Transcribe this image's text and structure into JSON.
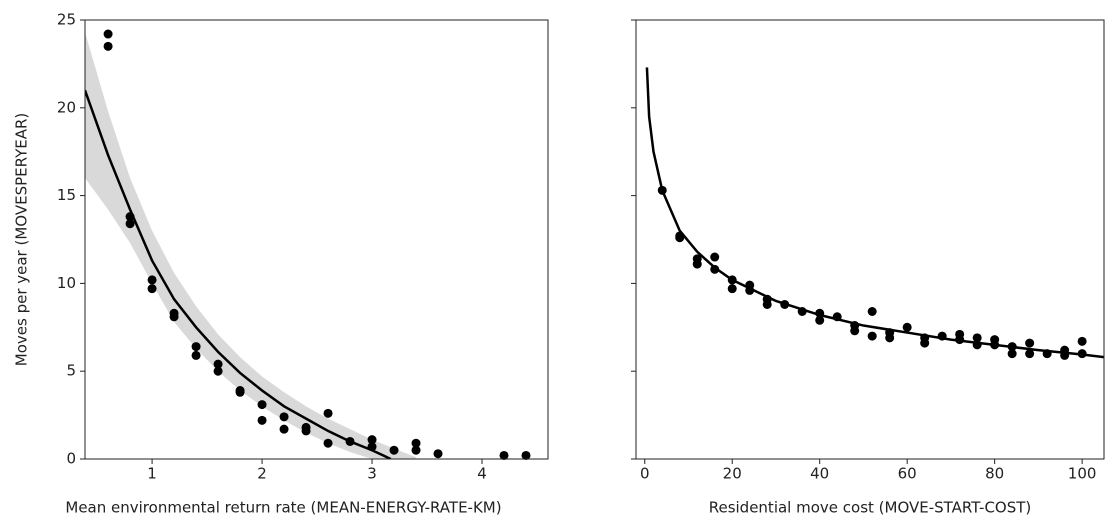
{
  "chart_data": [
    {
      "type": "scatter",
      "ylabel": "Moves per year (MOVESPERYEAR)",
      "xlabel": "Mean environmental return rate (MEAN-ENERGY-RATE-KM)",
      "x": [
        0.6,
        0.6,
        0.8,
        0.8,
        1.0,
        1.0,
        1.2,
        1.2,
        1.4,
        1.4,
        1.6,
        1.6,
        1.8,
        1.8,
        2.0,
        2.0,
        2.2,
        2.2,
        2.4,
        2.4,
        2.6,
        2.6,
        2.8,
        3.0,
        3.0,
        3.2,
        3.4,
        3.4,
        3.6,
        4.2,
        4.4
      ],
      "values": [
        24.2,
        23.5,
        13.8,
        13.4,
        10.2,
        9.7,
        8.3,
        8.1,
        6.4,
        5.9,
        5.4,
        5.0,
        3.9,
        3.8,
        3.1,
        2.2,
        2.4,
        1.7,
        1.8,
        1.6,
        2.6,
        0.9,
        1.0,
        1.1,
        0.7,
        0.5,
        0.9,
        0.5,
        0.3,
        0.2,
        0.2
      ],
      "color": "#000000",
      "fit": {
        "x": [
          0.39,
          0.6,
          0.8,
          1.0,
          1.2,
          1.4,
          1.6,
          1.8,
          2.0,
          2.2,
          2.4,
          2.6,
          2.8,
          3.0,
          3.17
        ],
        "values": [
          21.0,
          17.3,
          14.2,
          11.3,
          9.1,
          7.5,
          6.1,
          4.9,
          3.9,
          3.0,
          2.3,
          1.6,
          1.0,
          0.5,
          0.0
        ]
      },
      "band": {
        "x": [
          0.39,
          0.6,
          0.8,
          1.0,
          1.2,
          1.4,
          1.6,
          1.8,
          2.0,
          2.2,
          2.4,
          2.6,
          2.8,
          3.0,
          3.2,
          3.4
        ],
        "lower": [
          16.0,
          14.2,
          12.3,
          10.0,
          7.8,
          6.3,
          5.0,
          3.9,
          3.0,
          2.2,
          1.5,
          0.9,
          0.4,
          0.0,
          0.0,
          0.0
        ],
        "upper": [
          24.3,
          19.8,
          16.0,
          13.0,
          10.6,
          8.7,
          7.1,
          5.8,
          4.7,
          3.8,
          3.0,
          2.3,
          1.7,
          1.1,
          0.6,
          0.1
        ],
        "color": "#d9d9d9"
      },
      "xlim": [
        0.39,
        4.6
      ],
      "xticks": [
        1,
        2,
        3,
        4
      ],
      "ylim": [
        0,
        25
      ],
      "yticks": [
        0,
        5,
        10,
        15,
        20,
        25
      ]
    },
    {
      "type": "scatter",
      "xlabel": "Residential move cost (MOVE-START-COST)",
      "x": [
        4,
        8,
        8,
        12,
        12,
        16,
        16,
        20,
        20,
        24,
        24,
        28,
        28,
        32,
        36,
        40,
        40,
        44,
        48,
        48,
        52,
        52,
        56,
        56,
        60,
        64,
        64,
        68,
        72,
        72,
        76,
        76,
        80,
        80,
        84,
        84,
        88,
        88,
        92,
        96,
        96,
        100,
        100
      ],
      "values": [
        15.3,
        12.7,
        12.6,
        11.4,
        11.1,
        11.5,
        10.8,
        10.2,
        9.7,
        9.9,
        9.6,
        9.1,
        8.8,
        8.8,
        8.4,
        8.3,
        7.9,
        8.1,
        7.6,
        7.3,
        8.4,
        7.0,
        7.2,
        6.9,
        7.5,
        6.9,
        6.6,
        7.0,
        7.1,
        6.8,
        6.9,
        6.5,
        6.8,
        6.5,
        6.4,
        6.0,
        6.6,
        6.0,
        6.0,
        6.2,
        5.9,
        6.7,
        6.0
      ],
      "color": "#000000",
      "fit": {
        "x": [
          0.5,
          1,
          2,
          4,
          8,
          12,
          16,
          20,
          30,
          40,
          50,
          60,
          70,
          80,
          90,
          100,
          105
        ],
        "values": [
          22.3,
          19.5,
          17.5,
          15.3,
          13.0,
          11.8,
          10.9,
          10.2,
          9.0,
          8.2,
          7.6,
          7.2,
          6.8,
          6.5,
          6.2,
          5.95,
          5.8
        ]
      },
      "xlim": [
        -2,
        105
      ],
      "xticks": [
        0,
        20,
        40,
        60,
        80,
        100
      ],
      "ylim": [
        0,
        25
      ],
      "sharey": true
    }
  ]
}
